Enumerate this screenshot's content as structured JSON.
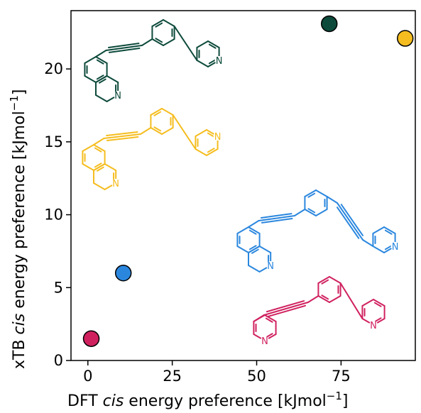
{
  "chart_data": {
    "type": "scatter",
    "xlabel": {
      "pre": "DFT ",
      "italic": "cis",
      "post": " energy preference [kJmol",
      "sup": "−1",
      "close": "]"
    },
    "ylabel": {
      "pre": "xTB ",
      "italic": "cis",
      "post": " energy preference [kJmol",
      "sup": "−1",
      "close": "]"
    },
    "xlim": [
      -5,
      97
    ],
    "ylim": [
      0,
      24
    ],
    "xticks": [
      0,
      25,
      50,
      75
    ],
    "yticks": [
      0,
      5,
      10,
      15,
      20
    ],
    "grid": false,
    "legend": "none",
    "points": [
      {
        "x": 1,
        "y": 1.5,
        "color": "#d0215f"
      },
      {
        "x": 10.5,
        "y": 6,
        "color": "#2b87de"
      },
      {
        "x": 71.5,
        "y": 23.1,
        "color": "#0d4a3b"
      },
      {
        "x": 94,
        "y": 22.1,
        "color": "#f5bd1f"
      }
    ]
  },
  "molecules": [
    {
      "name": "green",
      "color": "#0d4a3b",
      "atoms": [
        "N",
        "N"
      ]
    },
    {
      "name": "yellow",
      "color": "#f5bd1f",
      "atoms": [
        "N",
        "N"
      ]
    },
    {
      "name": "blue",
      "color": "#2b87de",
      "atoms": [
        "N",
        "N"
      ]
    },
    {
      "name": "magenta",
      "color": "#d0215f",
      "atoms": [
        "N",
        "N"
      ]
    }
  ]
}
